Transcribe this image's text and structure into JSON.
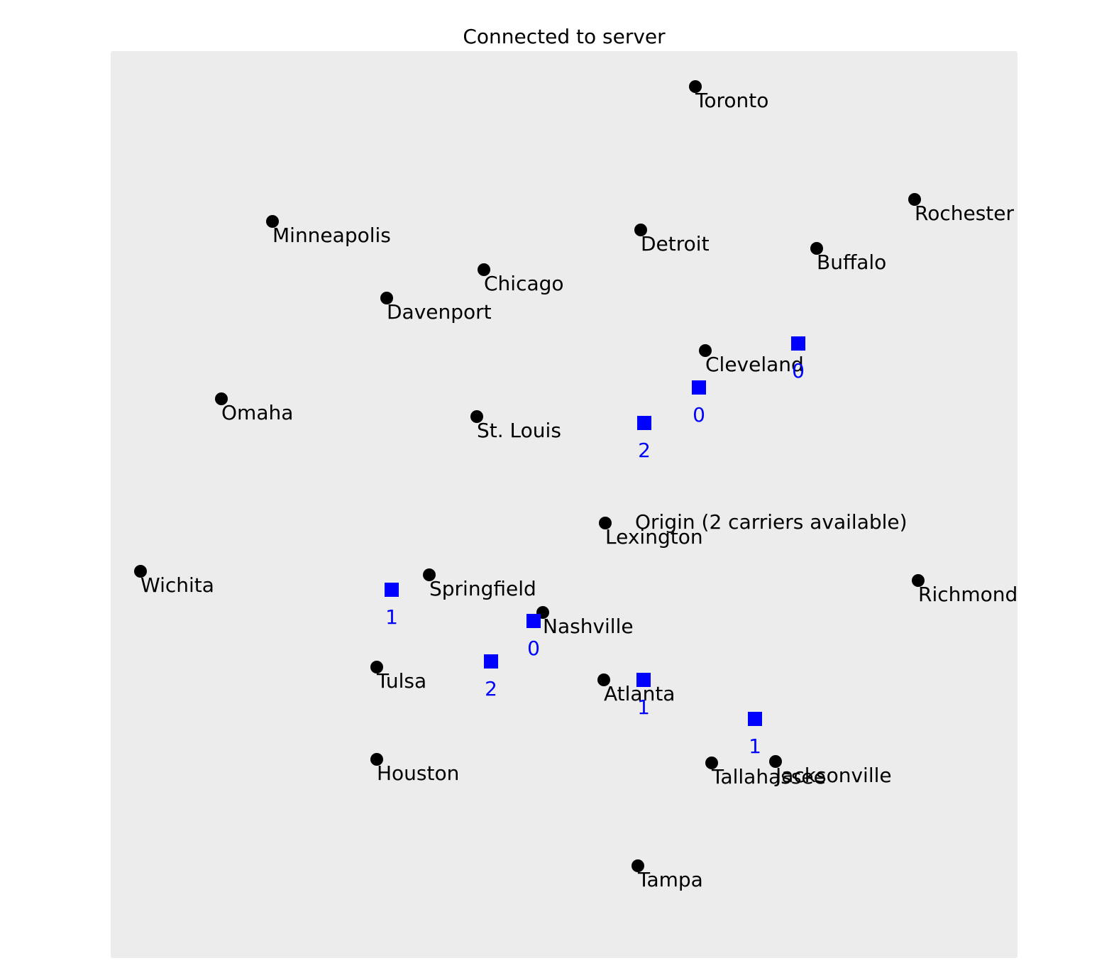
{
  "status": {
    "title": "Connected to server"
  },
  "map": {
    "city_color": "#000000",
    "carrier_color": "#0000ff",
    "background": "#ececec",
    "origin": {
      "label": "Origin (2 carriers available)"
    },
    "cities": [
      {
        "name": "Toronto"
      },
      {
        "name": "Rochester"
      },
      {
        "name": "Minneapolis"
      },
      {
        "name": "Detroit"
      },
      {
        "name": "Buffalo"
      },
      {
        "name": "Chicago"
      },
      {
        "name": "Davenport"
      },
      {
        "name": "Cleveland"
      },
      {
        "name": "Omaha"
      },
      {
        "name": "St. Louis"
      },
      {
        "name": "Lexington"
      },
      {
        "name": "Wichita"
      },
      {
        "name": "Springfield"
      },
      {
        "name": "Richmond"
      },
      {
        "name": "Nashville"
      },
      {
        "name": "Tulsa"
      },
      {
        "name": "Atlanta"
      },
      {
        "name": "Houston"
      },
      {
        "name": "Tallahassee"
      },
      {
        "name": "Jacksonville"
      },
      {
        "name": "Tampa"
      }
    ],
    "carriers": [
      {
        "label": "0"
      },
      {
        "label": "0"
      },
      {
        "label": "2"
      },
      {
        "label": "1"
      },
      {
        "label": "0"
      },
      {
        "label": "2"
      },
      {
        "label": "1"
      },
      {
        "label": "1"
      }
    ]
  }
}
